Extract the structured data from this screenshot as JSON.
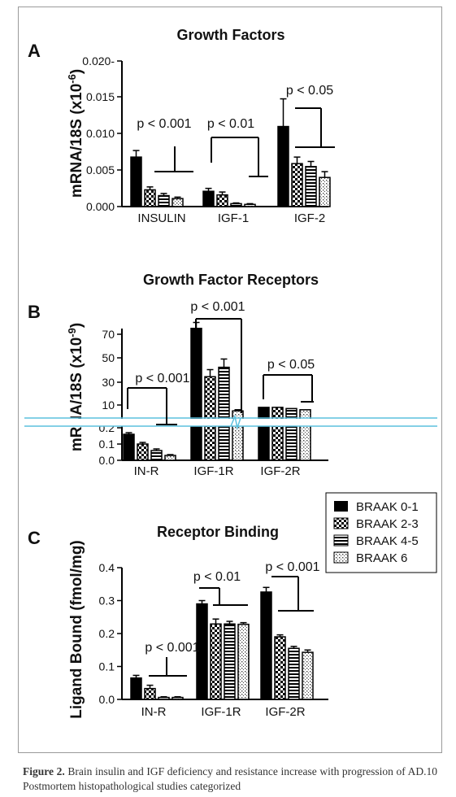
{
  "caption": {
    "label": "Figure 2.",
    "text": "Brain insulin and IGF deficiency and resistance increase with progression of AD.10 Postmortem histopathological studies categorized"
  },
  "legend": [
    "BRAAK 0-1",
    "BRAAK 2-3",
    "BRAAK 4-5",
    "BRAAK 6"
  ],
  "colors": {
    "bar_fill": "#000000",
    "axis": "#000000",
    "break_line": "#5bc0de"
  },
  "icons": [
    "solid-swatch",
    "checker-swatch",
    "horizontal-stripe-swatch",
    "dot-swatch"
  ],
  "chart_data": [
    {
      "type": "bar",
      "panel_label": "A",
      "title": "Growth Factors",
      "ylabel": "mRNA/18S (x10",
      "ylabel_exp": "-6",
      "ylabel_end": ")",
      "ylim": [
        0,
        0.02
      ],
      "yticks": [
        "0.000",
        "0.005",
        "0.010",
        "0.015",
        "0.020-"
      ],
      "categories": [
        "INSULIN",
        "IGF-1",
        "IGF-2"
      ],
      "series": [
        {
          "name": "BRAAK 0-1",
          "values": [
            0.0068,
            0.0021,
            0.011
          ],
          "errors": [
            0.0009,
            0.0004,
            0.0038
          ]
        },
        {
          "name": "BRAAK 2-3",
          "values": [
            0.0023,
            0.0016,
            0.0059
          ],
          "errors": [
            0.0004,
            0.0004,
            0.0009
          ]
        },
        {
          "name": "BRAAK 4-5",
          "values": [
            0.0015,
            0.0004,
            0.0055
          ],
          "errors": [
            0.0003,
            0.0001,
            0.0007
          ]
        },
        {
          "name": "BRAAK 6",
          "values": [
            0.0011,
            0.0003,
            0.004
          ],
          "errors": [
            0.0002,
            0.0001,
            0.0008
          ]
        }
      ],
      "annotations": [
        "p < 0.001",
        "p < 0.01",
        "p < 0.05"
      ]
    },
    {
      "type": "bar",
      "panel_label": "B",
      "title": "Growth Factor Receptors",
      "ylabel": "mRNA/18S (x10",
      "ylabel_exp": "-9",
      "ylabel_end": ")",
      "broken_axis": true,
      "lower_ylim": [
        0,
        0.2
      ],
      "upper_ylim": [
        10,
        70
      ],
      "yticks": [
        "0.0",
        "0.1",
        "0.2",
        "10",
        "30",
        "50",
        "70"
      ],
      "categories": [
        "IN-R",
        "IGF-1R",
        "IGF-2R"
      ],
      "series": [
        {
          "name": "BRAAK 0-1",
          "values": [
            0.16,
            75,
            8
          ],
          "errors": [
            0.01,
            5,
            0
          ]
        },
        {
          "name": "BRAAK 2-3",
          "values": [
            0.1,
            34,
            8
          ],
          "errors": [
            0.01,
            6,
            0
          ]
        },
        {
          "name": "BRAAK 4-5",
          "values": [
            0.06,
            42,
            7
          ],
          "errors": [
            0.01,
            7,
            0
          ]
        },
        {
          "name": "BRAAK 6",
          "values": [
            0.03,
            5,
            6
          ],
          "errors": [
            0.005,
            1,
            0
          ]
        }
      ],
      "annotations": [
        "p < 0.001",
        "p < 0.001",
        "p < 0.05"
      ]
    },
    {
      "type": "bar",
      "panel_label": "C",
      "title": "Receptor Binding",
      "ylabel": "Ligand Bound (fmol/mg)",
      "ylim": [
        0,
        0.4
      ],
      "yticks": [
        "0.0",
        "0.1",
        "0.2",
        "0.3",
        "0.4"
      ],
      "categories": [
        "IN-R",
        "IGF-1R",
        "IGF-2R"
      ],
      "series": [
        {
          "name": "BRAAK 0-1",
          "values": [
            0.065,
            0.29,
            0.326
          ],
          "errors": [
            0.008,
            0.01,
            0.014
          ]
        },
        {
          "name": "BRAAK 2-3",
          "values": [
            0.033,
            0.229,
            0.19
          ],
          "errors": [
            0.01,
            0.015,
            0.006
          ]
        },
        {
          "name": "BRAAK 4-5",
          "values": [
            0.006,
            0.229,
            0.155
          ],
          "errors": [
            0.002,
            0.008,
            0.006
          ]
        },
        {
          "name": "BRAAK 6",
          "values": [
            0.006,
            0.228,
            0.143
          ],
          "errors": [
            0.002,
            0.005,
            0.007
          ]
        }
      ],
      "annotations": [
        "p < 0.001",
        "p < 0.01",
        "p < 0.001"
      ]
    }
  ]
}
